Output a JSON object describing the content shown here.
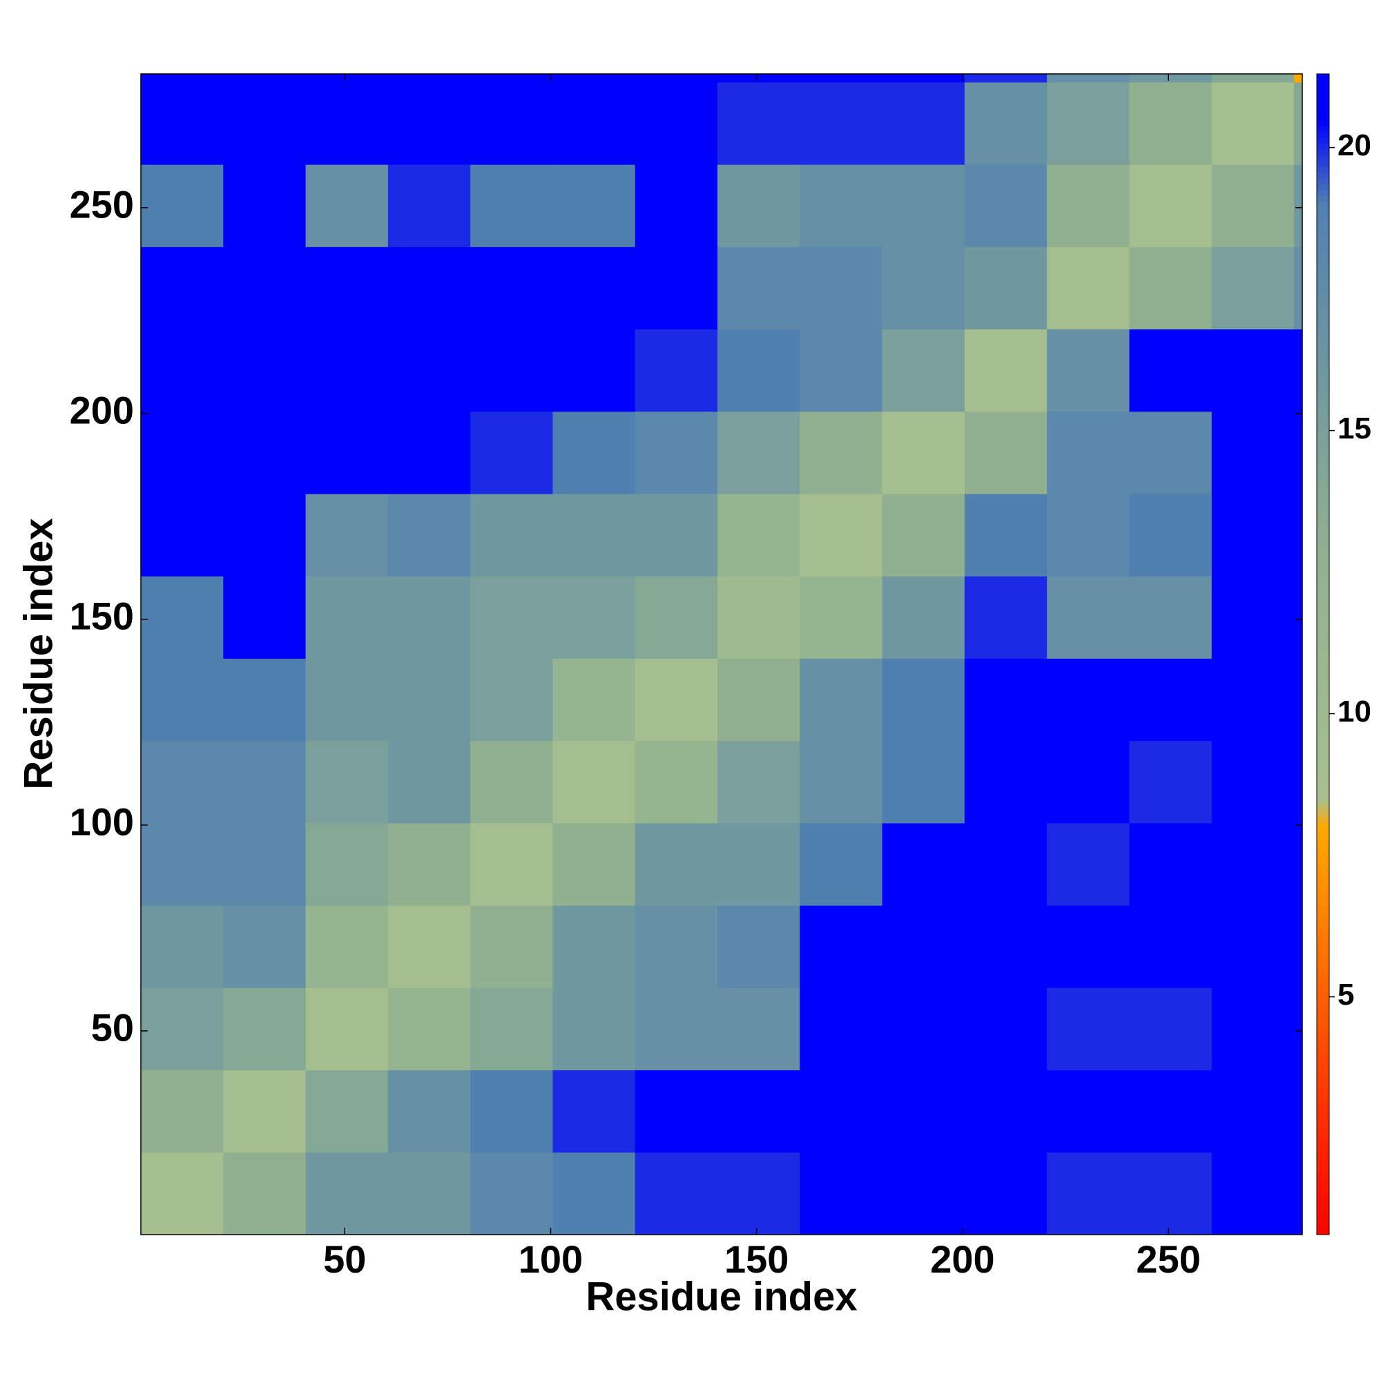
{
  "chart_data": {
    "type": "heatmap",
    "x_label": "Residue index",
    "y_label": "Residue index",
    "x_edges": [
      0.5,
      20.5,
      40.5,
      60.5,
      80.5,
      100.5,
      120.5,
      140.5,
      160.5,
      180.5,
      200.5,
      220.5,
      240.5,
      260.5,
      280.5,
      282.5
    ],
    "y_edges": [
      0.5,
      20.5,
      40.5,
      60.5,
      80.5,
      100.5,
      120.5,
      140.5,
      160.5,
      180.5,
      200.5,
      220.5,
      240.5,
      260.5,
      280.5,
      282.5
    ],
    "xlim": [
      0.5,
      282.5
    ],
    "ylim": [
      0.5,
      282.5
    ],
    "xticks": [
      50,
      100,
      150,
      200,
      250
    ],
    "yticks": [
      50,
      100,
      150,
      200,
      250
    ],
    "colorbar": {
      "lim": [
        0.8,
        21.3
      ],
      "ticks": [
        5,
        10,
        15,
        20
      ]
    },
    "colorscale": [
      [
        0.8,
        "#ff0000"
      ],
      [
        5,
        "#ff6000"
      ],
      [
        8,
        "#ffa800"
      ],
      [
        8.5,
        "#a8c090"
      ],
      [
        13,
        "#90b090"
      ],
      [
        19,
        "#5080b0"
      ],
      [
        20.5,
        "#0000ff"
      ]
    ],
    "z": [
      [
        9,
        13,
        16,
        16,
        18,
        19,
        20,
        20,
        21,
        21,
        21,
        20,
        20,
        21,
        21
      ],
      [
        13,
        9,
        14,
        17,
        19,
        20,
        21,
        21,
        21,
        21,
        21,
        21,
        21,
        21,
        21
      ],
      [
        15,
        14,
        9,
        12,
        14,
        16,
        17,
        17,
        21,
        21,
        21,
        20,
        20,
        21,
        21
      ],
      [
        16,
        17,
        12,
        9,
        13,
        16,
        17,
        18,
        21,
        21,
        21,
        21,
        21,
        21,
        21
      ],
      [
        18,
        18,
        14,
        13,
        9,
        13,
        16,
        16,
        19,
        21,
        21,
        20,
        21,
        21,
        21
      ],
      [
        18,
        18,
        15,
        16,
        13,
        9,
        12,
        15,
        17,
        19,
        21,
        21,
        20,
        21,
        21
      ],
      [
        19,
        19,
        16,
        16,
        15,
        12,
        9,
        13,
        17,
        19,
        21,
        21,
        21,
        21,
        21
      ],
      [
        19,
        21,
        16,
        16,
        15,
        15,
        14,
        10,
        12,
        16,
        20,
        17,
        17,
        21,
        21
      ],
      [
        21,
        21,
        17,
        18,
        16,
        16,
        16,
        12,
        9,
        13,
        19,
        18,
        19,
        21,
        21
      ],
      [
        21,
        21,
        21,
        21,
        20,
        19,
        18,
        15,
        13,
        9,
        13,
        18,
        18,
        21,
        21
      ],
      [
        21,
        21,
        21,
        21,
        21,
        21,
        20,
        19,
        18,
        15,
        9,
        17,
        21,
        21,
        21
      ],
      [
        21,
        21,
        21,
        21,
        21,
        21,
        21,
        18,
        18,
        17,
        16,
        9,
        13,
        15,
        17
      ],
      [
        19,
        21,
        17,
        20,
        19,
        19,
        21,
        16,
        17,
        17,
        18,
        13,
        9,
        13,
        16
      ],
      [
        21,
        21,
        21,
        21,
        21,
        21,
        21,
        20,
        20,
        20,
        17,
        15,
        13,
        9,
        14
      ],
      [
        21,
        21,
        21,
        21,
        21,
        21,
        21,
        21,
        21,
        21,
        20,
        17,
        16,
        14,
        8
      ]
    ]
  }
}
